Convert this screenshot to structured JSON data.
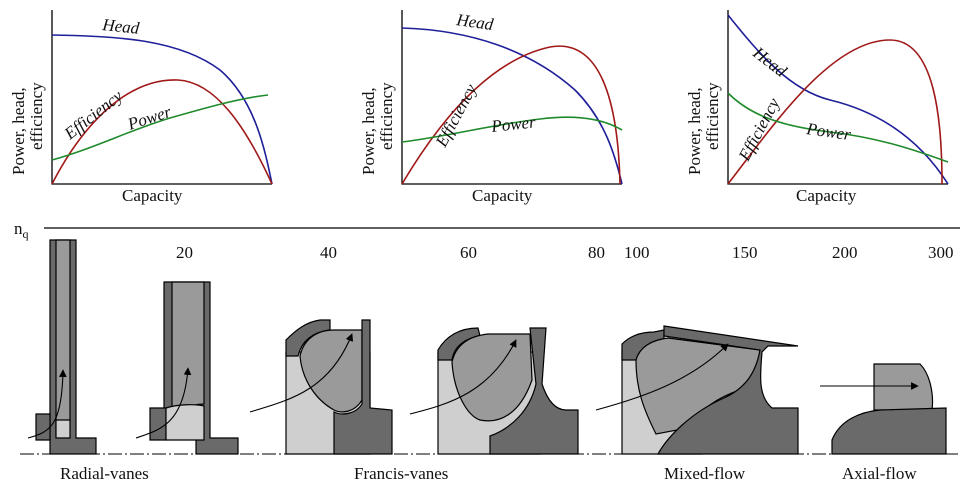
{
  "charts": [
    {
      "id": "radial",
      "ylabel": [
        "Power, head,",
        "efficiency"
      ],
      "xlabel": "Capacity",
      "curves": {
        "head": "Head",
        "efficiency": "Efficiency",
        "power": "Power"
      }
    },
    {
      "id": "francis",
      "ylabel": [
        "Power, head,",
        "efficiency"
      ],
      "xlabel": "Capacity",
      "curves": {
        "head": "Head",
        "efficiency": "Efficiency",
        "power": "Power"
      }
    },
    {
      "id": "axial",
      "ylabel": [
        "Power, head,",
        "efficiency"
      ],
      "xlabel": "Capacity",
      "curves": {
        "head": "Head",
        "efficiency": "Efficiency",
        "power": "Power"
      }
    }
  ],
  "scale": {
    "symbol": "n",
    "subscript": "q",
    "ticks": [
      "20",
      "40",
      "60",
      "80",
      "100",
      "150",
      "200",
      "300"
    ]
  },
  "impeller_types": [
    "Radial-vanes",
    "Francis-vanes",
    "Mixed-flow",
    "Axial-flow"
  ],
  "colors": {
    "head": "#1f1f9a",
    "efficiency": "#a01818",
    "power": "#1e8a2a"
  }
}
